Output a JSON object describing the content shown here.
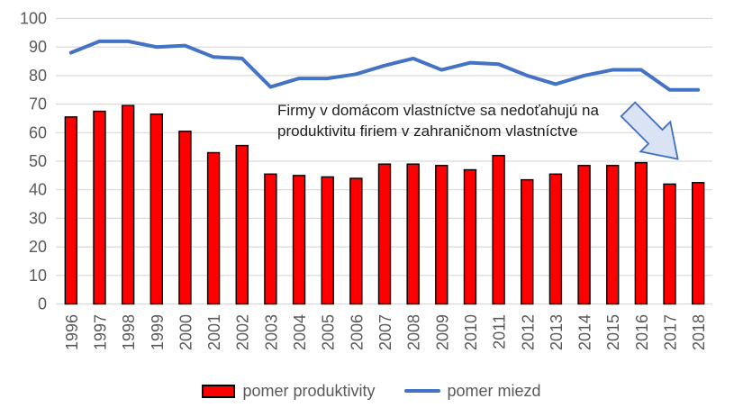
{
  "chart_data": {
    "type": "combo-bar-line",
    "title": "",
    "categories": [
      "1996",
      "1997",
      "1998",
      "1999",
      "2000",
      "2001",
      "2002",
      "2003",
      "2004",
      "2005",
      "2006",
      "2007",
      "2008",
      "2009",
      "2010",
      "2011",
      "2012",
      "2013",
      "2014",
      "2015",
      "2016",
      "2017",
      "2018"
    ],
    "series": [
      {
        "name": "pomer produktivity",
        "type": "bar",
        "color": "#FF0000",
        "border_color": "#000000",
        "values": [
          65.5,
          67.5,
          69.5,
          66.5,
          60.5,
          53,
          55.5,
          45.5,
          45,
          44.5,
          44,
          49,
          49,
          48.5,
          47,
          52,
          43.5,
          45.5,
          48.5,
          48.5,
          49.5,
          42,
          42.5
        ]
      },
      {
        "name": "pomer miezd",
        "type": "line",
        "color": "#4472C4",
        "values": [
          88,
          92,
          92,
          90,
          90.5,
          86.5,
          86,
          76,
          79,
          79,
          80.5,
          83.5,
          86,
          82,
          84.5,
          84,
          80,
          77,
          80,
          82,
          82,
          75,
          75
        ]
      }
    ],
    "ylim": [
      0,
      100
    ],
    "yticks": [
      0,
      10,
      20,
      30,
      40,
      50,
      60,
      70,
      80,
      90,
      100
    ],
    "xlabel": "",
    "ylabel": "",
    "grid": true,
    "x_tick_rotation": 90,
    "legend_position": "bottom"
  },
  "annotation": {
    "line1": "Firmy v domácom vlastníctve sa nedoťahujú na",
    "line2": "produktivitu firiem v zahraničnom vlastníctve"
  },
  "legend": {
    "items": [
      {
        "label": "pomer produktivity",
        "marker": "bar-swatch",
        "color": "#FF0000"
      },
      {
        "label": "pomer miezd",
        "marker": "line-swatch",
        "color": "#4472C4"
      }
    ]
  },
  "colors": {
    "bar_fill": "#FF0000",
    "bar_border": "#000000",
    "line": "#4472C4",
    "gridline": "#D9D9D9",
    "axis_text": "#595959",
    "annotation_text": "#1F1F1F",
    "arrow_fill": "#DAE3F3",
    "arrow_border": "#4472C4"
  }
}
